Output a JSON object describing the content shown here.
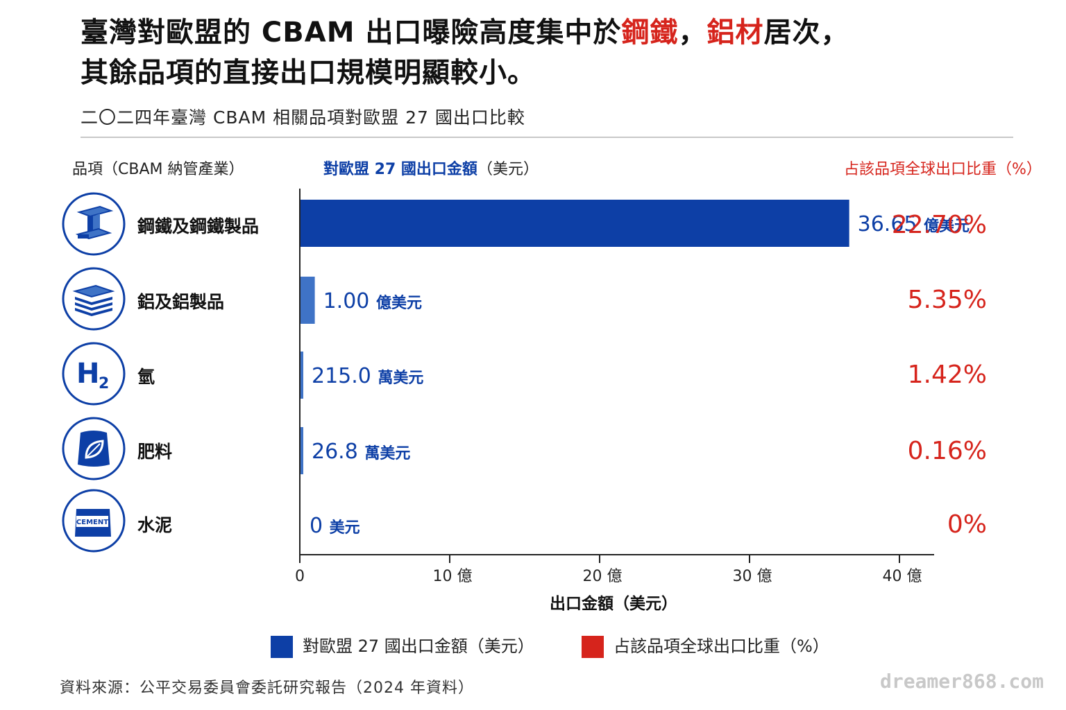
{
  "title": {
    "line1_pre": "臺灣對歐盟的 CBAM 出口曝險高度集中於",
    "line1_hl1": "鋼鐵",
    "line1_sep": "，",
    "line1_hl2": "鋁材",
    "line1_post": "居次，",
    "line2": "其餘品項的直接出口規模明顯較小。"
  },
  "subtitle": "二〇二四年臺灣 CBAM 相關品項對歐盟 27 國出口比較",
  "headers": {
    "category": "品項（CBAM 納管產業）",
    "amount": "對歐盟 27 國出口金額",
    "amount_unit": "（美元）",
    "share": "占該品項全球出口比重（%）"
  },
  "icons": [
    "steel-beam-icon",
    "aluminum-sheets-icon",
    "hydrogen-icon",
    "fertilizer-bag-icon",
    "cement-bag-icon"
  ],
  "colors": {
    "bar_primary": "#0d3fa6",
    "bar_secondary": "#3f73c6",
    "share": "#d6241c"
  },
  "chart_data": {
    "type": "bar",
    "orientation": "horizontal",
    "categories": [
      "鋼鐵及鋼鐵製品",
      "鋁及鋁製品",
      "氫",
      "肥料",
      "水泥"
    ],
    "values": [
      3665000000,
      100000000,
      2150000,
      268000,
      0
    ],
    "value_labels": [
      {
        "num": "36.65",
        "unit": "億美元"
      },
      {
        "num": "1.00",
        "unit": "億美元"
      },
      {
        "num": "215.0",
        "unit": "萬美元"
      },
      {
        "num": "26.8",
        "unit": "萬美元"
      },
      {
        "num": "0",
        "unit": "美元"
      }
    ],
    "share_labels": [
      "22.70%",
      "5.35%",
      "1.42%",
      "0.16%",
      "0%"
    ],
    "xlim": [
      0,
      4000000000
    ],
    "xticks": [
      0,
      1000000000,
      2000000000,
      3000000000,
      4000000000
    ],
    "xtick_labels": [
      "0",
      "10 億",
      "20 億",
      "30 億",
      "40 億"
    ],
    "xlabel": "出口金額（美元）",
    "grid": false,
    "legend_position": "bottom"
  },
  "legend": {
    "amount": "對歐盟 27 國出口金額（美元）",
    "share": "占該品項全球出口比重（%）"
  },
  "source": "資料來源：公平交易委員會委託研究報告（2024 年資料）",
  "watermark": "dreamer868.com"
}
